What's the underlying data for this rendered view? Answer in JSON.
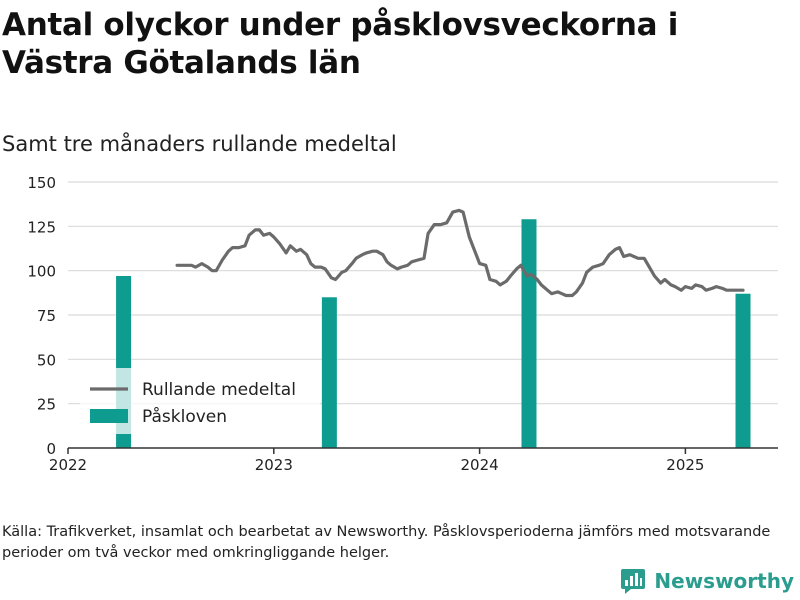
{
  "title": "Antal olyckor under påsklovsveckorna i Västra Götalands län",
  "subtitle": "Samt tre månaders rullande medeltal",
  "source_note": "Källa: Trafikverket, insamlat och bearbetat av Newsworthy. Påsklovsperioderna jämförs med motsvarande perioder om två veckor med omkringliggande helger.",
  "brand": {
    "name": "Newsworthy",
    "icon": "newsworthy-logo-icon"
  },
  "colors": {
    "line": "#6b6b6b",
    "bar": "#0e9c91",
    "grid": "#d9d9d9",
    "axis": "#333333"
  },
  "chart_data": {
    "type": "bar+line",
    "xlim": [
      2022.0,
      2025.45
    ],
    "ylim": [
      0,
      150
    ],
    "yticks": [
      0,
      25,
      50,
      75,
      100,
      125,
      150
    ],
    "xticks": [
      {
        "value": 2022,
        "label": "2022"
      },
      {
        "value": 2023,
        "label": "2023"
      },
      {
        "value": 2024,
        "label": "2024"
      },
      {
        "value": 2025,
        "label": "2025"
      }
    ],
    "grid": true,
    "legend_position": "bottom-left",
    "legend": [
      {
        "label": "Rullande medeltal",
        "kind": "line"
      },
      {
        "label": "Påskloven",
        "kind": "bar"
      }
    ],
    "bars": {
      "name": "Påskloven",
      "x": [
        "2022-04",
        "2023-04",
        "2024-03",
        "2025-04"
      ],
      "xpos": [
        2022.27,
        2023.27,
        2024.24,
        2025.28
      ],
      "values": [
        97,
        85,
        129,
        87
      ]
    },
    "line": {
      "name": "Rullande medeltal",
      "x": [
        2022.53,
        2022.57,
        2022.6,
        2022.62,
        2022.65,
        2022.68,
        2022.7,
        2022.72,
        2022.75,
        2022.78,
        2022.8,
        2022.83,
        2022.86,
        2022.88,
        2022.91,
        2022.93,
        2022.95,
        2022.98,
        2023.0,
        2023.03,
        2023.06,
        2023.08,
        2023.11,
        2023.13,
        2023.16,
        2023.18,
        2023.2,
        2023.23,
        2023.25,
        2023.28,
        2023.3,
        2023.33,
        2023.35,
        2023.38,
        2023.4,
        2023.43,
        2023.45,
        2023.48,
        2023.5,
        2023.53,
        2023.55,
        2023.57,
        2023.6,
        2023.62,
        2023.65,
        2023.67,
        2023.7,
        2023.73,
        2023.75,
        2023.78,
        2023.81,
        2023.84,
        2023.87,
        2023.9,
        2023.92,
        2023.95,
        2023.98,
        2024.0,
        2024.03,
        2024.05,
        2024.08,
        2024.1,
        2024.13,
        2024.15,
        2024.18,
        2024.2,
        2024.23,
        2024.25,
        2024.28,
        2024.3,
        2024.33,
        2024.35,
        2024.38,
        2024.4,
        2024.42,
        2024.45,
        2024.47,
        2024.5,
        2024.52,
        2024.55,
        2024.58,
        2024.6,
        2024.63,
        2024.66,
        2024.68,
        2024.7,
        2024.73,
        2024.75,
        2024.77,
        2024.8,
        2024.83,
        2024.85,
        2024.88,
        2024.9,
        2024.93,
        2024.95,
        2024.98,
        2025.0,
        2025.03,
        2025.05,
        2025.08,
        2025.1,
        2025.13,
        2025.15,
        2025.18,
        2025.2,
        2025.23,
        2025.25,
        2025.28
      ],
      "values": [
        103,
        103,
        103,
        102,
        104,
        102,
        100,
        100,
        106,
        111,
        113,
        113,
        114,
        120,
        123,
        123,
        120,
        121,
        119,
        115,
        110,
        114,
        111,
        112,
        109,
        104,
        102,
        102,
        101,
        96,
        95,
        99,
        100,
        104,
        107,
        109,
        110,
        111,
        111,
        109,
        105,
        103,
        101,
        102,
        103,
        105,
        106,
        107,
        121,
        126,
        126,
        127,
        133,
        134,
        133,
        119,
        110,
        104,
        103,
        95,
        94,
        92,
        94,
        97,
        101,
        103,
        97,
        98,
        95,
        92,
        89,
        87,
        88,
        87,
        86,
        86,
        88,
        93,
        99,
        102,
        103,
        104,
        109,
        112,
        113,
        108,
        109,
        108,
        107,
        107,
        101,
        97,
        93,
        95,
        92,
        91,
        89,
        91,
        90,
        92,
        91,
        89,
        90,
        91,
        90,
        89,
        89,
        89,
        89
      ]
    }
  }
}
